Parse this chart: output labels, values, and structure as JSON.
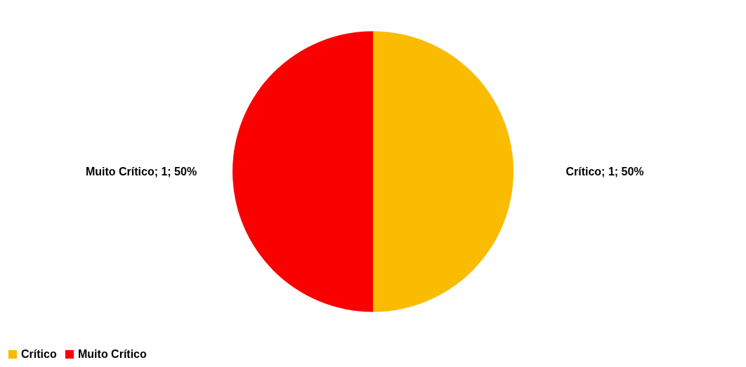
{
  "chart_data": {
    "type": "pie",
    "categories": [
      "Crítico",
      "Muito Crítico"
    ],
    "values": [
      1,
      1
    ],
    "colors": [
      "#f9bc00",
      "#fa0000"
    ],
    "value_labels": [
      "Crítico; 1; 50%",
      "Muito Crítico; 1; 50%"
    ],
    "legend": "bottom"
  }
}
